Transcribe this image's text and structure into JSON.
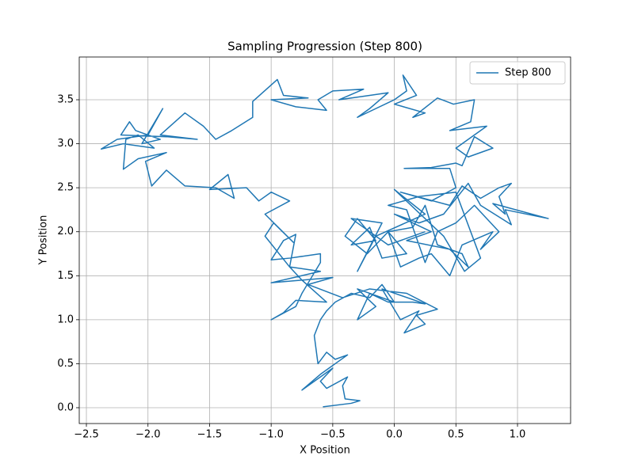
{
  "chart_data": {
    "type": "line",
    "title": "Sampling Progression (Step 800)",
    "x_label": "X Position",
    "y_label": "Y Position",
    "x": [
      -0.58,
      -0.35,
      -0.28,
      -0.4,
      -0.42,
      -0.38,
      -0.55,
      -0.6,
      -0.5,
      -0.75,
      -0.6,
      -0.38,
      -0.48,
      -0.55,
      -0.62,
      -0.65,
      -0.6,
      -0.55,
      -0.48,
      -0.35,
      -0.2,
      -0.1,
      0.0,
      -0.3,
      -0.15,
      -0.3,
      -0.2,
      -0.05,
      0.15,
      0.25,
      -0.1,
      0.05,
      0.2,
      0.08,
      0.25,
      0.18,
      0.35,
      0.1,
      -0.2,
      -0.42,
      -0.7,
      -0.5,
      -1.0,
      -0.6,
      -0.85,
      -0.75,
      -0.55,
      -0.8,
      -0.9,
      -1.0,
      -0.8,
      -0.75,
      -0.6,
      -0.6,
      -0.85,
      -1.0,
      -0.9,
      -0.8,
      -0.85,
      -1.05,
      -0.98,
      -0.82,
      -1.05,
      -0.85,
      -1.0,
      -1.1,
      -1.2,
      -1.5,
      -1.35,
      -1.3,
      -1.45,
      -1.7,
      -1.85,
      -1.97,
      -2.02,
      -1.85,
      -2.08,
      -2.2,
      -2.18,
      -2.08,
      -1.95,
      -2.2,
      -2.38,
      -2.25,
      -2.0,
      -1.88,
      -2.05,
      -1.9,
      -2.1,
      -2.15,
      -2.22,
      -1.85,
      -1.6,
      -1.9,
      -1.7,
      -1.55,
      -1.45,
      -1.32,
      -1.15,
      -1.15,
      -0.95,
      -0.9,
      -0.7,
      -1.0,
      -0.8,
      -0.55,
      -0.62,
      -0.5,
      -0.25,
      -0.45,
      -0.2,
      -0.05,
      -0.2,
      -0.3,
      0.0,
      0.1,
      0.07,
      0.18,
      0.0,
      0.25,
      0.15,
      0.35,
      0.48,
      0.65,
      0.62,
      0.45,
      0.75,
      0.5,
      0.6,
      0.8,
      0.65,
      0.55,
      0.5,
      0.3,
      0.08,
      0.45,
      0.5,
      0.3,
      0.05,
      0.45,
      0.55,
      0.7,
      0.85,
      0.95,
      0.85,
      0.9,
      0.8,
      1.25,
      0.9,
      0.95,
      0.7,
      0.6,
      0.4,
      0.2,
      0.0,
      0.3,
      0.1,
      0.45,
      0.6,
      0.55,
      0.35,
      0.25,
      0.15,
      -0.05,
      0.1,
      -0.1,
      -0.2,
      -0.35,
      -0.15,
      -0.3,
      -0.4,
      -0.22,
      -0.05,
      0.05,
      0.2,
      0.3,
      0.45,
      0.55,
      0.8,
      0.7,
      0.85,
      0.65,
      0.5,
      0.35,
      0.25,
      0.1,
      -0.05,
      0.2,
      0.5,
      0.7,
      0.57,
      0.4,
      0.0,
      0.25,
      -0.15,
      -0.3,
      -0.1,
      -0.35,
      -0.05,
      0.25
    ],
    "series": [
      {
        "name": "Step 800",
        "color": "#1f77b4",
        "values": [
          0.01,
          0.05,
          0.08,
          0.1,
          0.25,
          0.35,
          0.22,
          0.3,
          0.45,
          0.2,
          0.38,
          0.6,
          0.55,
          0.63,
          0.5,
          0.82,
          1.0,
          1.1,
          1.2,
          1.3,
          1.25,
          1.4,
          1.2,
          1.35,
          1.15,
          1.0,
          1.3,
          1.2,
          1.2,
          1.18,
          1.35,
          1.0,
          1.1,
          0.85,
          0.95,
          1.05,
          1.12,
          1.3,
          1.35,
          1.25,
          1.4,
          1.48,
          1.42,
          1.55,
          1.6,
          1.45,
          1.2,
          1.22,
          1.08,
          1.0,
          1.15,
          1.3,
          1.65,
          1.75,
          1.7,
          1.68,
          1.9,
          1.97,
          1.6,
          1.95,
          2.1,
          1.88,
          2.2,
          2.35,
          2.45,
          2.35,
          2.5,
          2.48,
          2.65,
          2.38,
          2.5,
          2.52,
          2.7,
          2.52,
          2.8,
          2.9,
          2.83,
          2.71,
          3.05,
          3.1,
          2.95,
          3.0,
          2.94,
          3.05,
          3.1,
          3.4,
          3.0,
          3.05,
          3.15,
          3.25,
          3.1,
          3.08,
          3.05,
          3.1,
          3.35,
          3.2,
          3.05,
          3.15,
          3.3,
          3.48,
          3.73,
          3.55,
          3.52,
          3.5,
          3.42,
          3.38,
          3.5,
          3.6,
          3.62,
          3.5,
          3.55,
          3.58,
          3.4,
          3.3,
          3.5,
          3.6,
          3.78,
          3.55,
          3.45,
          3.35,
          3.3,
          3.52,
          3.45,
          3.5,
          3.25,
          3.15,
          3.2,
          2.95,
          2.85,
          2.95,
          3.08,
          2.75,
          2.78,
          2.73,
          2.72,
          2.72,
          2.5,
          2.35,
          2.45,
          2.3,
          2.52,
          2.38,
          2.5,
          2.55,
          2.4,
          2.2,
          2.32,
          2.15,
          2.25,
          2.08,
          2.3,
          2.55,
          2.2,
          2.1,
          2.2,
          2.0,
          1.9,
          1.8,
          1.6,
          1.75,
          1.85,
          2.3,
          2.05,
          2.0,
          1.75,
          1.7,
          2.05,
          1.85,
          1.9,
          2.15,
          1.95,
          1.75,
          2.0,
          1.6,
          1.7,
          1.75,
          1.5,
          1.85,
          2.0,
          1.8,
          2.0,
          2.3,
          2.1,
          2.0,
          1.65,
          2.25,
          2.3,
          2.4,
          2.45,
          1.7,
          1.55,
          1.95,
          2.48,
          2.2,
          1.95,
          1.55,
          2.1,
          2.15,
          1.85,
          2.0
        ]
      }
    ],
    "xlim": [
      -2.558,
      1.431
    ],
    "ylim": [
      -0.18,
      3.986
    ],
    "xticks": [
      {
        "value": -2.5,
        "label": "−2.5"
      },
      {
        "value": -2.0,
        "label": "−2.0"
      },
      {
        "value": -1.5,
        "label": "−1.5"
      },
      {
        "value": -1.0,
        "label": "−1.0"
      },
      {
        "value": -0.5,
        "label": "−0.5"
      },
      {
        "value": 0.0,
        "label": "0.0"
      },
      0.5,
      {
        "value": 1.0,
        "label": "1.0"
      }
    ],
    "yticks": [
      {
        "value": 0.0,
        "label": "0.0"
      },
      0.5,
      {
        "value": 1.0,
        "label": "1.0"
      },
      1.5,
      {
        "value": 2.0,
        "label": "2.0"
      },
      2.5,
      {
        "value": 3.0,
        "label": "3.0"
      },
      3.5
    ],
    "grid": true,
    "legend": "upper-right"
  }
}
